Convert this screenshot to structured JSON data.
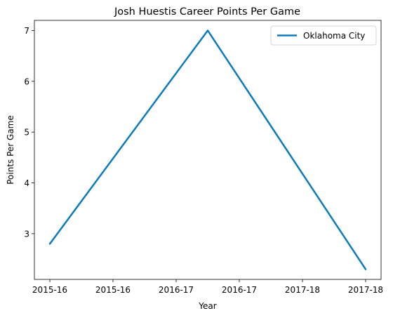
{
  "chart_data": {
    "type": "line",
    "title": "Josh Huestis Career Points Per Game",
    "xlabel": "Year",
    "ylabel": "Points Per Game",
    "x_tick_labels": [
      "2015-16",
      "2015-16",
      "2016-17",
      "2016-17",
      "2017-18",
      "2017-18"
    ],
    "y_tick_labels": [
      "3",
      "4",
      "5",
      "6",
      "7"
    ],
    "y_ticks": [
      3,
      4,
      5,
      6,
      7
    ],
    "x": [
      "2015-16",
      "2016-17",
      "2017-18"
    ],
    "series": [
      {
        "name": "Oklahoma City",
        "color": "#0C7BBD",
        "values": [
          2.8,
          7.0,
          2.3
        ]
      }
    ],
    "ylim": [
      2.1,
      7.2
    ],
    "grid": false,
    "legend_position": "top-right"
  }
}
